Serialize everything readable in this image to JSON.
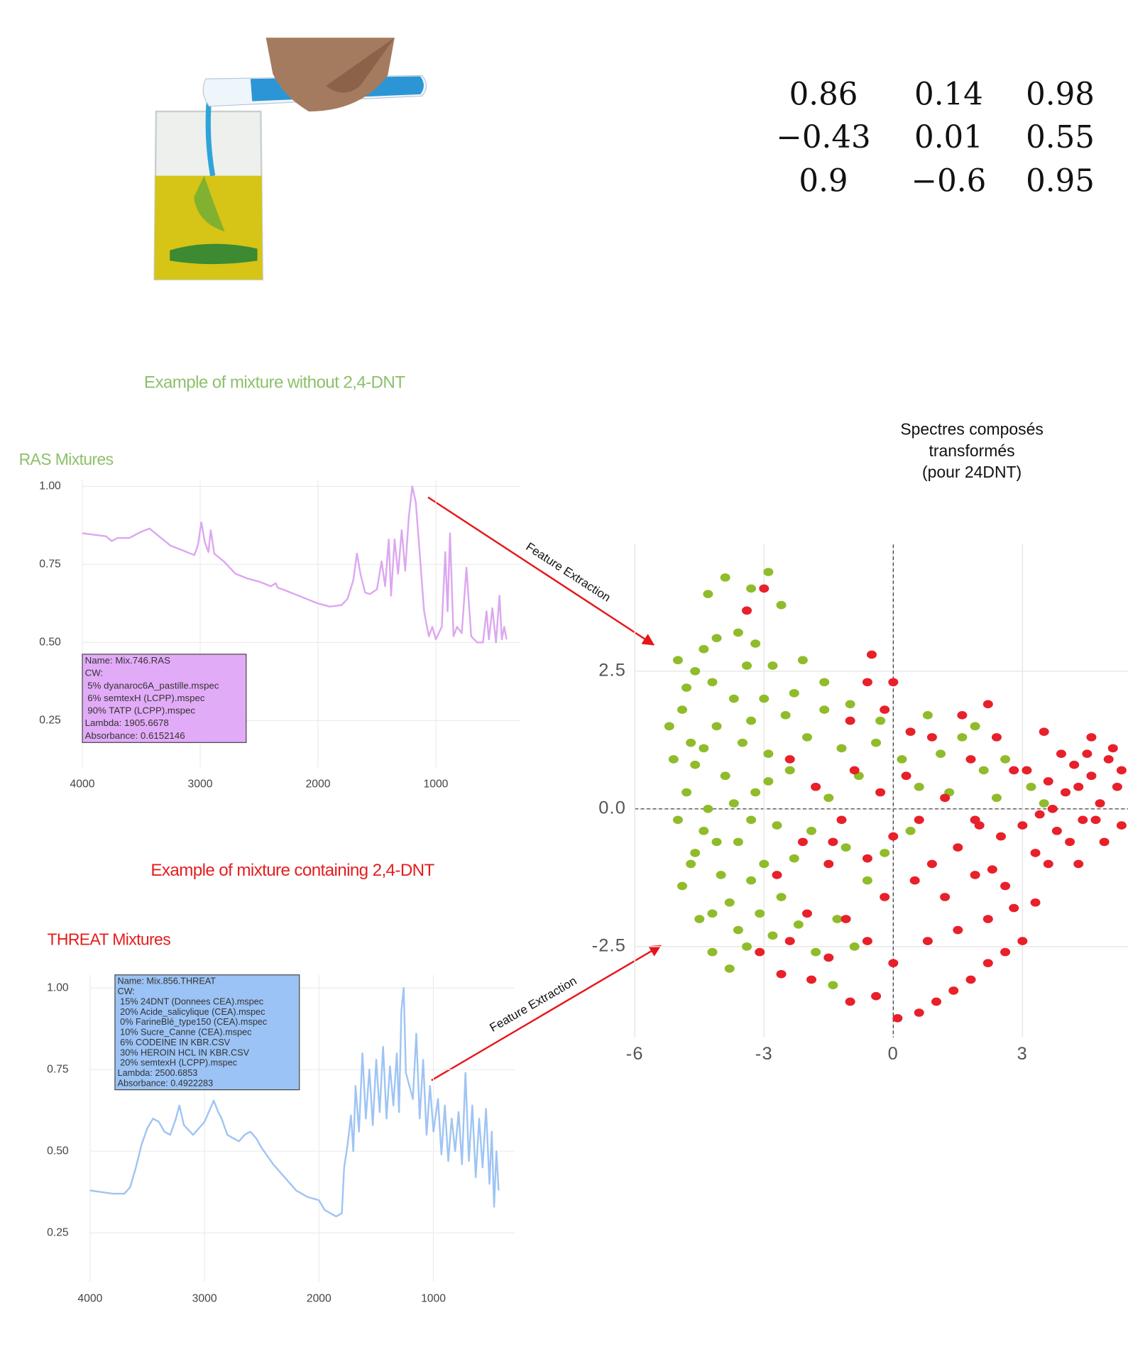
{
  "headings": {
    "without": "Example of mixture without 2,4-DNT",
    "containing": "Example of mixture containing 2,4-DNT"
  },
  "matrix": [
    [
      "0.86",
      "0.14",
      "0.98"
    ],
    [
      "−0.43",
      "0.01",
      "0.55"
    ],
    [
      "0.9",
      "−0.6",
      "0.95"
    ]
  ],
  "annotations": [
    "Feature Extraction",
    "Feature Extraction"
  ],
  "chart_data": [
    {
      "type": "line",
      "title": "RAS Mixtures",
      "color": "#dca7f0",
      "x": [
        4000,
        3900,
        3800,
        3750,
        3700,
        3600,
        3500,
        3430,
        3350,
        3250,
        3150,
        3050,
        3020,
        2990,
        2960,
        2930,
        2910,
        2880,
        2800,
        2700,
        2600,
        2500,
        2400,
        2360,
        2340,
        2300,
        2200,
        2100,
        2000,
        1900,
        1800,
        1750,
        1700,
        1670,
        1640,
        1600,
        1560,
        1500,
        1460,
        1430,
        1400,
        1380,
        1350,
        1320,
        1290,
        1260,
        1230,
        1200,
        1170,
        1140,
        1100,
        1060,
        1030,
        1000,
        950,
        920,
        900,
        880,
        850,
        820,
        780,
        740,
        700,
        650,
        600,
        570,
        550,
        520,
        490,
        460,
        440,
        420,
        400
      ],
      "values": [
        0.85,
        0.845,
        0.84,
        0.825,
        0.835,
        0.835,
        0.855,
        0.865,
        0.84,
        0.81,
        0.795,
        0.78,
        0.81,
        0.885,
        0.82,
        0.79,
        0.86,
        0.785,
        0.76,
        0.72,
        0.705,
        0.695,
        0.68,
        0.69,
        0.675,
        0.67,
        0.655,
        0.64,
        0.625,
        0.615,
        0.62,
        0.64,
        0.7,
        0.785,
        0.72,
        0.66,
        0.655,
        0.67,
        0.76,
        0.68,
        0.83,
        0.65,
        0.83,
        0.72,
        0.86,
        0.73,
        0.9,
        1.0,
        0.95,
        0.8,
        0.6,
        0.52,
        0.55,
        0.51,
        0.55,
        0.79,
        0.6,
        0.85,
        0.52,
        0.55,
        0.53,
        0.74,
        0.52,
        0.5,
        0.5,
        0.6,
        0.51,
        0.61,
        0.5,
        0.65,
        0.51,
        0.55,
        0.51
      ],
      "xlim": [
        4000,
        280
      ],
      "ylim": [
        0.1,
        1.02
      ],
      "xticks": [
        4000,
        3000,
        2000,
        1000
      ],
      "yticks": [
        0.25,
        {
          "value": 0.5,
          "label": "0.50"
        },
        0.75,
        {
          "value": 1,
          "label": "1.00"
        }
      ],
      "grid": true,
      "tooltip": [
        "Name: Mix.746.RAS",
        "CW:",
        "5% dyanaroc6A_pastille.mspec",
        "6% semtexH (LCPP).mspec",
        "90% TATP (LCPP).mspec",
        "Lambda: 1905.6678",
        "Absorbance: 0.6152146"
      ]
    },
    {
      "type": "line",
      "title": "THREAT Mixtures",
      "color": "#9fc4f4",
      "x": [
        4000,
        3900,
        3800,
        3700,
        3650,
        3600,
        3550,
        3500,
        3450,
        3400,
        3350,
        3300,
        3250,
        3220,
        3180,
        3100,
        3050,
        3000,
        2950,
        2920,
        2880,
        2850,
        2800,
        2750,
        2700,
        2650,
        2600,
        2550,
        2500,
        2400,
        2300,
        2200,
        2100,
        2000,
        1950,
        1900,
        1850,
        1800,
        1780,
        1750,
        1720,
        1700,
        1680,
        1650,
        1620,
        1590,
        1560,
        1530,
        1500,
        1470,
        1440,
        1410,
        1380,
        1350,
        1320,
        1300,
        1280,
        1260,
        1240,
        1210,
        1180,
        1150,
        1120,
        1090,
        1060,
        1030,
        1000,
        960,
        930,
        900,
        870,
        840,
        810,
        780,
        750,
        720,
        690,
        660,
        630,
        600,
        570,
        540,
        510,
        490,
        470,
        450,
        430
      ],
      "values": [
        0.38,
        0.375,
        0.37,
        0.37,
        0.39,
        0.45,
        0.52,
        0.57,
        0.6,
        0.59,
        0.56,
        0.55,
        0.6,
        0.64,
        0.58,
        0.55,
        0.57,
        0.59,
        0.63,
        0.655,
        0.62,
        0.6,
        0.55,
        0.54,
        0.53,
        0.55,
        0.56,
        0.54,
        0.51,
        0.46,
        0.42,
        0.38,
        0.36,
        0.35,
        0.32,
        0.31,
        0.3,
        0.31,
        0.45,
        0.52,
        0.61,
        0.5,
        0.7,
        0.56,
        0.8,
        0.6,
        0.75,
        0.58,
        0.78,
        0.62,
        0.82,
        0.6,
        0.76,
        0.64,
        0.8,
        0.62,
        0.93,
        1.0,
        0.74,
        0.7,
        0.66,
        0.86,
        0.6,
        0.78,
        0.55,
        0.7,
        0.56,
        0.66,
        0.49,
        0.64,
        0.47,
        0.6,
        0.5,
        0.62,
        0.46,
        0.74,
        0.47,
        0.64,
        0.42,
        0.6,
        0.45,
        0.63,
        0.4,
        0.56,
        0.33,
        0.5,
        0.38
      ],
      "xlim": [
        4000,
        290
      ],
      "ylim": [
        0.1,
        1.04
      ],
      "xticks": [
        4000,
        3000,
        2000,
        1000
      ],
      "yticks": [
        0.25,
        {
          "value": 0.5,
          "label": "0.50"
        },
        0.75,
        {
          "value": 1,
          "label": "1.00"
        }
      ],
      "grid": true,
      "tooltip": [
        "Name: Mix.856.THREAT",
        "CW:",
        "15% 24DNT (Donnees CEA).mspec",
        "20% Acide_salicylique (CEA).mspec",
        "0% FarineBlé_type150 (CEA).mspec",
        "10% Sucre_Canne (CEA).mspec",
        "6% CODEINE IN KBR.CSV",
        "30% HEROIN HCL IN KBR.CSV",
        "20% semtexH (LCPP).mspec",
        "Lambda: 2500.6853",
        "Absorbance: 0.4922283"
      ]
    },
    {
      "type": "scatter",
      "title": [
        "Spectres composés",
        "transformés",
        "(pour 24DNT)"
      ],
      "xlim": [
        -6.3,
        5.45
      ],
      "ylim": [
        -4.15,
        4.8
      ],
      "xticks": [
        -6,
        -3,
        0,
        3
      ],
      "yticks": [
        -2.5,
        {
          "value": 0,
          "label": "0.0"
        },
        2.5
      ],
      "grid": true,
      "zero_lines": true,
      "series": [
        {
          "color": "#8fbc2a",
          "x": [
            -4.9,
            -4.6,
            -4.4,
            -4.1,
            -3.6,
            -3.2,
            -2.8,
            -2.3,
            -3.9,
            -3.3,
            -2.9,
            -4.3,
            -2.6,
            -5.0,
            -4.7,
            -5.1,
            -4.8,
            -5.0,
            -4.6,
            -4.9,
            -4.5,
            -4.2,
            -3.8,
            -3.4,
            -3.1,
            -4.0,
            -3.6,
            -4.3,
            -3.9,
            -3.5,
            -4.1,
            -3.7,
            -3.3,
            -2.9,
            -3.2,
            -2.7,
            -3.0,
            -2.6,
            -2.2,
            -1.8,
            -1.4,
            -2.4,
            -2.0,
            -1.6,
            -1.2,
            -0.8,
            -0.4,
            0.2,
            0.6,
            1.1,
            1.6,
            2.1,
            2.6,
            3.2,
            3.5,
            -2.3,
            -1.9,
            -1.5,
            -1.1,
            -0.6,
            -2.1,
            -1.6,
            -1.0,
            -0.3,
            0.8,
            1.9,
            -4.4,
            -4.7,
            -3.8,
            -4.2,
            -3.3,
            -4.6,
            -4.2,
            -3.4,
            -3.0,
            -2.5,
            -2.8,
            -3.6,
            -4.1,
            -3.7,
            -3.3,
            -2.9,
            -5.2,
            -4.8,
            -4.4,
            -1.3,
            -0.9,
            -0.2,
            0.4,
            1.3,
            2.4
          ],
          "values": [
            1.8,
            2.5,
            2.9,
            3.1,
            3.2,
            3.0,
            2.6,
            2.1,
            4.2,
            4.0,
            4.3,
            3.9,
            3.7,
            2.7,
            1.2,
            0.9,
            0.3,
            -0.2,
            -0.8,
            -1.4,
            -2.0,
            -2.6,
            -2.9,
            -2.5,
            -1.9,
            -1.2,
            -0.6,
            0.0,
            0.6,
            1.2,
            1.5,
            2.0,
            1.6,
            1.0,
            0.3,
            -0.3,
            -1.0,
            -1.6,
            -2.1,
            -2.6,
            -3.2,
            0.7,
            1.3,
            1.8,
            1.1,
            0.6,
            1.2,
            0.9,
            0.4,
            1.0,
            1.3,
            0.7,
            0.9,
            0.4,
            0.1,
            -0.9,
            -0.4,
            0.2,
            -0.7,
            -1.3,
            2.7,
            2.3,
            1.9,
            1.6,
            1.7,
            1.5,
            -0.4,
            -1.0,
            -1.7,
            -1.9,
            -1.3,
            0.8,
            2.3,
            2.6,
            2.0,
            1.7,
            -2.3,
            -2.2,
            -0.6,
            0.1,
            -0.2,
            0.5,
            1.5,
            2.2,
            1.1,
            -2.0,
            -2.5,
            -0.8,
            -0.4,
            0.3,
            0.2
          ]
        },
        {
          "color": "#e8202a",
          "x": [
            5.2,
            5.0,
            4.8,
            4.6,
            4.4,
            4.2,
            4.0,
            3.8,
            3.6,
            3.4,
            5.3,
            5.1,
            4.9,
            4.5,
            4.1,
            3.9,
            3.3,
            3.0,
            2.8,
            2.5,
            2.3,
            2.0,
            1.8,
            1.5,
            1.2,
            0.9,
            0.6,
            0.3,
            0.0,
            -0.3,
            -0.6,
            -0.9,
            -1.2,
            -1.5,
            -1.8,
            -2.1,
            -2.4,
            -2.7,
            -0.5,
            -0.6,
            0.0,
            -1.0,
            0.4,
            1.6,
            2.4,
            3.5,
            4.6,
            2.2,
            -3.0,
            -3.4,
            -2.4,
            -1.9,
            -1.5,
            -1.0,
            -0.4,
            0.1,
            0.6,
            1.0,
            1.4,
            1.8,
            2.2,
            2.6,
            3.0,
            2.8,
            2.2,
            1.5,
            0.8,
            0.0,
            -0.6,
            -1.1,
            -0.2,
            0.5,
            1.2,
            1.9,
            2.6,
            3.3,
            3.6,
            4.3,
            -2.0,
            -2.6,
            -3.1,
            -1.4,
            -0.2,
            0.9,
            1.9,
            3.1,
            4.7,
            5.3,
            4.3,
            3.7
          ],
          "values": [
            0.4,
            0.9,
            0.1,
            0.6,
            -0.2,
            0.8,
            0.3,
            -0.4,
            0.5,
            -0.1,
            -0.3,
            1.1,
            -0.6,
            1.0,
            -0.6,
            1.0,
            -0.8,
            -0.3,
            0.7,
            -0.5,
            -1.1,
            -0.3,
            0.9,
            -0.7,
            0.2,
            -1.0,
            -0.2,
            0.6,
            -0.5,
            0.3,
            -0.9,
            0.7,
            -0.2,
            -1.0,
            0.4,
            -0.6,
            0.9,
            -1.2,
            2.8,
            2.3,
            2.3,
            1.6,
            1.4,
            1.7,
            1.3,
            1.4,
            1.3,
            1.9,
            4.0,
            3.6,
            -2.4,
            -3.1,
            -2.7,
            -3.5,
            -3.4,
            -3.8,
            -3.7,
            -3.5,
            -3.3,
            -3.1,
            -2.8,
            -2.6,
            -2.4,
            -1.8,
            -2.0,
            -2.2,
            -2.4,
            -2.8,
            -2.4,
            -2.0,
            -1.6,
            -1.3,
            -1.6,
            -1.2,
            -1.4,
            -1.7,
            -1.0,
            -1.0,
            -1.9,
            -3.0,
            -2.6,
            -0.6,
            1.8,
            1.3,
            -0.2,
            0.7,
            -0.2,
            0.7,
            0.4,
            0.0
          ]
        }
      ]
    }
  ]
}
